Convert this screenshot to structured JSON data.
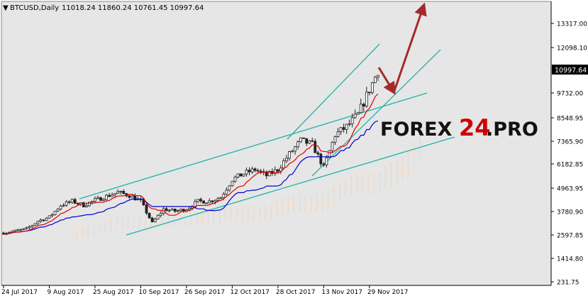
{
  "header": {
    "symbol": "BTCUSD,Daily",
    "ohlc": "11018.24 11860.24 10761.45 10997.64"
  },
  "watermark": {
    "part1": "FOREX",
    "part2": "24",
    "part3": ".PRO"
  },
  "price_label": "10997.64",
  "colors": {
    "background": "#ffffff",
    "plot_bg": "#e6e6e6",
    "candle": "#222222",
    "tenkan": "#e00000",
    "kijun": "#0000cc",
    "cloud": "#ffb266",
    "channel": "#20b2aa",
    "arrow": "#a52a2a",
    "price_label_bg": "#000000"
  },
  "chart_data": {
    "type": "candlestick",
    "title": "BTCUSD,Daily",
    "y_ticks": [
      "13317.00",
      "12098.10",
      "9732.00",
      "8548.95",
      "7365.90",
      "6182.85",
      "4963.95",
      "3780.90",
      "2597.85",
      "1414.80",
      "231.75"
    ],
    "x_ticks": [
      "24 Jul 2017",
      "9 Aug 2017",
      "25 Aug 2017",
      "10 Sep 2017",
      "26 Sep 2017",
      "12 Oct 2017",
      "28 Oct 2017",
      "13 Nov 2017",
      "29 Nov 2017"
    ],
    "ylim": [
      231.75,
      14500
    ],
    "current_price": 10997.64,
    "close_series": {
      "name": "close",
      "points": [
        [
          "24 Jul 2017",
          2700
        ],
        [
          "28 Jul 2017",
          2800
        ],
        [
          "1 Aug 2017",
          2900
        ],
        [
          "5 Aug 2017",
          3300
        ],
        [
          "9 Aug 2017",
          3500
        ],
        [
          "13 Aug 2017",
          4100
        ],
        [
          "17 Aug 2017",
          4300
        ],
        [
          "21 Aug 2017",
          4100
        ],
        [
          "25 Aug 2017",
          4350
        ],
        [
          "29 Aug 2017",
          4550
        ],
        [
          "2 Sep 2017",
          4750
        ],
        [
          "6 Sep 2017",
          4600
        ],
        [
          "10 Sep 2017",
          4300
        ],
        [
          "14 Sep 2017",
          3200
        ],
        [
          "18 Sep 2017",
          3900
        ],
        [
          "22 Sep 2017",
          3800
        ],
        [
          "26 Sep 2017",
          3900
        ],
        [
          "30 Sep 2017",
          4300
        ],
        [
          "4 Oct 2017",
          4300
        ],
        [
          "8 Oct 2017",
          4500
        ],
        [
          "12 Oct 2017",
          5400
        ],
        [
          "16 Oct 2017",
          5700
        ],
        [
          "20 Oct 2017",
          5900
        ],
        [
          "24 Oct 2017",
          5600
        ],
        [
          "28 Oct 2017",
          5900
        ],
        [
          "1 Nov 2017",
          6700
        ],
        [
          "5 Nov 2017",
          7400
        ],
        [
          "9 Nov 2017",
          7200
        ],
        [
          "13 Nov 2017",
          6000
        ],
        [
          "17 Nov 2017",
          7700
        ],
        [
          "21 Nov 2017",
          8100
        ],
        [
          "25 Nov 2017",
          8700
        ],
        [
          "29 Nov 2017",
          9900
        ],
        [
          "2 Dec 2017",
          10900
        ],
        [
          "4 Dec 2017",
          11000
        ]
      ]
    }
  }
}
